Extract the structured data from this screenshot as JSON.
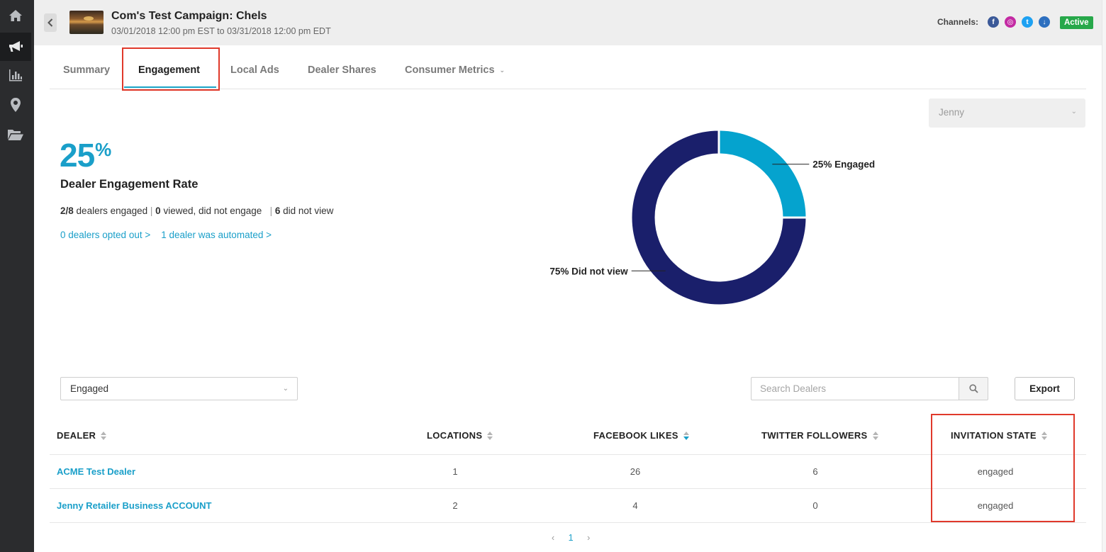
{
  "header": {
    "title": "Com's Test Campaign: Chels",
    "dates": "03/01/2018 12:00 pm EST to 03/31/2018 12:00 pm EDT",
    "channels_label": "Channels:",
    "channels": [
      {
        "name": "facebook",
        "glyph": "f",
        "color": "#3b5998"
      },
      {
        "name": "instagram",
        "glyph": "◎",
        "color": "#c32aa3"
      },
      {
        "name": "twitter",
        "glyph": "t",
        "color": "#1da1f2"
      },
      {
        "name": "download",
        "glyph": "↓",
        "color": "#2d6fbf"
      }
    ],
    "status": "Active"
  },
  "tabs": [
    {
      "label": "Summary",
      "active": false
    },
    {
      "label": "Engagement",
      "active": true
    },
    {
      "label": "Local Ads",
      "active": false
    },
    {
      "label": "Dealer Shares",
      "active": false
    },
    {
      "label": "Consumer Metrics",
      "active": false,
      "dropdown": true
    }
  ],
  "user_select": {
    "value": "Jenny"
  },
  "engagement": {
    "rate_value": "25",
    "rate_unit": "%",
    "rate_label": "Dealer Engagement Rate",
    "engaged_count": "2/8",
    "engaged_text": "dealers engaged",
    "viewed_count": "0",
    "viewed_text": "viewed, did not engage",
    "not_view_count": "6",
    "not_view_text": "did not view",
    "opted_out_link": "0 dealers opted out >",
    "automated_link": "1 dealer was automated >"
  },
  "chart_data": {
    "type": "pie",
    "donut": true,
    "slices": [
      {
        "label": "25% Engaged",
        "value": 25,
        "color": "#05a3ce"
      },
      {
        "label": "75% Did not view",
        "value": 75,
        "color": "#1a1f6b"
      }
    ]
  },
  "table_controls": {
    "filter_value": "Engaged",
    "search_placeholder": "Search Dealers",
    "export_label": "Export"
  },
  "table": {
    "columns": [
      "DEALER",
      "LOCATIONS",
      "FACEBOOK LIKES",
      "TWITTER FOLLOWERS",
      "INVITATION STATE"
    ],
    "rows": [
      {
        "dealer": "ACME Test Dealer",
        "locations": "1",
        "facebook_likes": "26",
        "twitter_followers": "6",
        "invitation_state": "engaged"
      },
      {
        "dealer": "Jenny Retailer Business ACCOUNT",
        "locations": "2",
        "facebook_likes": "4",
        "twitter_followers": "0",
        "invitation_state": "engaged"
      }
    ]
  },
  "pagination": {
    "prev": "‹",
    "page": "1",
    "next": "›"
  }
}
